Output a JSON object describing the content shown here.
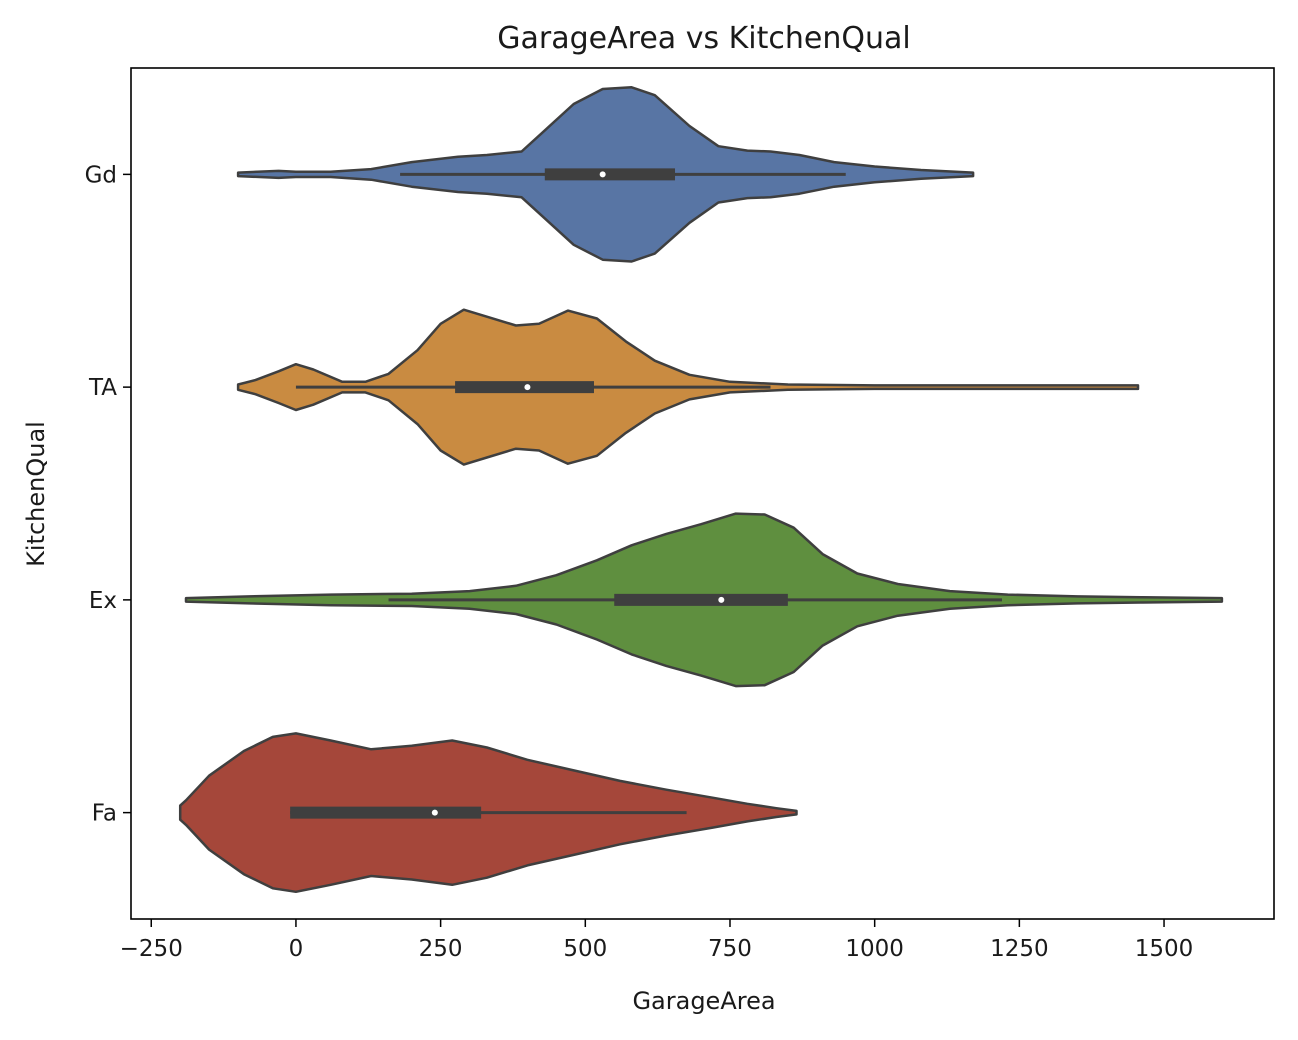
{
  "chart_data": {
    "type": "violin",
    "orientation": "horizontal",
    "title": "GarageArea vs KitchenQual",
    "xlabel": "GarageArea",
    "ylabel": "KitchenQual",
    "xlim": [
      -285,
      1690
    ],
    "xticks": [
      -250,
      0,
      250,
      500,
      750,
      1000,
      1250,
      1500
    ],
    "xtick_labels": [
      "−250",
      "0",
      "250",
      "500",
      "750",
      "1000",
      "1250",
      "1500"
    ],
    "categories": [
      "Gd",
      "TA",
      "Ex",
      "Fa"
    ],
    "grid": false,
    "series": [
      {
        "category": "Gd",
        "color": "#5875a4",
        "whisker_low": 180,
        "q1": 430,
        "median": 530,
        "q3": 655,
        "whisker_high": 950,
        "density": [
          [
            -100,
            0.02
          ],
          [
            -30,
            0.04
          ],
          [
            0,
            0.03
          ],
          [
            60,
            0.03
          ],
          [
            130,
            0.06
          ],
          [
            200,
            0.14
          ],
          [
            280,
            0.2
          ],
          [
            330,
            0.22
          ],
          [
            390,
            0.26
          ],
          [
            430,
            0.5
          ],
          [
            480,
            0.8
          ],
          [
            530,
            0.97
          ],
          [
            580,
            0.99
          ],
          [
            620,
            0.9
          ],
          [
            680,
            0.55
          ],
          [
            730,
            0.32
          ],
          [
            780,
            0.27
          ],
          [
            820,
            0.26
          ],
          [
            870,
            0.22
          ],
          [
            930,
            0.14
          ],
          [
            1000,
            0.09
          ],
          [
            1080,
            0.05
          ],
          [
            1170,
            0.02
          ]
        ]
      },
      {
        "category": "TA",
        "color": "#c98b41",
        "whisker_low": 0,
        "q1": 275,
        "median": 400,
        "q3": 515,
        "whisker_high": 820,
        "density": [
          [
            -100,
            0.03
          ],
          [
            -70,
            0.08
          ],
          [
            -30,
            0.18
          ],
          [
            0,
            0.26
          ],
          [
            30,
            0.2
          ],
          [
            80,
            0.06
          ],
          [
            120,
            0.06
          ],
          [
            160,
            0.15
          ],
          [
            210,
            0.42
          ],
          [
            250,
            0.72
          ],
          [
            290,
            0.88
          ],
          [
            330,
            0.8
          ],
          [
            380,
            0.7
          ],
          [
            420,
            0.72
          ],
          [
            470,
            0.87
          ],
          [
            520,
            0.78
          ],
          [
            570,
            0.52
          ],
          [
            620,
            0.3
          ],
          [
            680,
            0.14
          ],
          [
            750,
            0.06
          ],
          [
            850,
            0.03
          ],
          [
            1000,
            0.02
          ],
          [
            1250,
            0.02
          ],
          [
            1455,
            0.02
          ]
        ]
      },
      {
        "category": "Ex",
        "color": "#5f8f3f",
        "whisker_low": 160,
        "q1": 550,
        "median": 735,
        "q3": 850,
        "whisker_high": 1220,
        "density": [
          [
            -190,
            0.02
          ],
          [
            -80,
            0.04
          ],
          [
            60,
            0.06
          ],
          [
            200,
            0.07
          ],
          [
            300,
            0.1
          ],
          [
            380,
            0.16
          ],
          [
            450,
            0.28
          ],
          [
            520,
            0.45
          ],
          [
            580,
            0.62
          ],
          [
            640,
            0.75
          ],
          [
            700,
            0.86
          ],
          [
            760,
            0.98
          ],
          [
            810,
            0.97
          ],
          [
            860,
            0.82
          ],
          [
            910,
            0.52
          ],
          [
            970,
            0.3
          ],
          [
            1040,
            0.18
          ],
          [
            1130,
            0.1
          ],
          [
            1230,
            0.06
          ],
          [
            1350,
            0.04
          ],
          [
            1460,
            0.03
          ],
          [
            1600,
            0.02
          ]
        ]
      },
      {
        "category": "Fa",
        "color": "#a5473a",
        "whisker_low": -10,
        "q1": -10,
        "median": 240,
        "q3": 320,
        "whisker_high": 675,
        "density": [
          [
            -200,
            0.08
          ],
          [
            -190,
            0.14
          ],
          [
            -150,
            0.42
          ],
          [
            -90,
            0.7
          ],
          [
            -40,
            0.86
          ],
          [
            0,
            0.9
          ],
          [
            60,
            0.82
          ],
          [
            130,
            0.72
          ],
          [
            200,
            0.76
          ],
          [
            270,
            0.82
          ],
          [
            330,
            0.74
          ],
          [
            400,
            0.6
          ],
          [
            480,
            0.48
          ],
          [
            560,
            0.36
          ],
          [
            640,
            0.26
          ],
          [
            720,
            0.17
          ],
          [
            780,
            0.1
          ],
          [
            830,
            0.05
          ],
          [
            865,
            0.02
          ]
        ]
      }
    ]
  }
}
